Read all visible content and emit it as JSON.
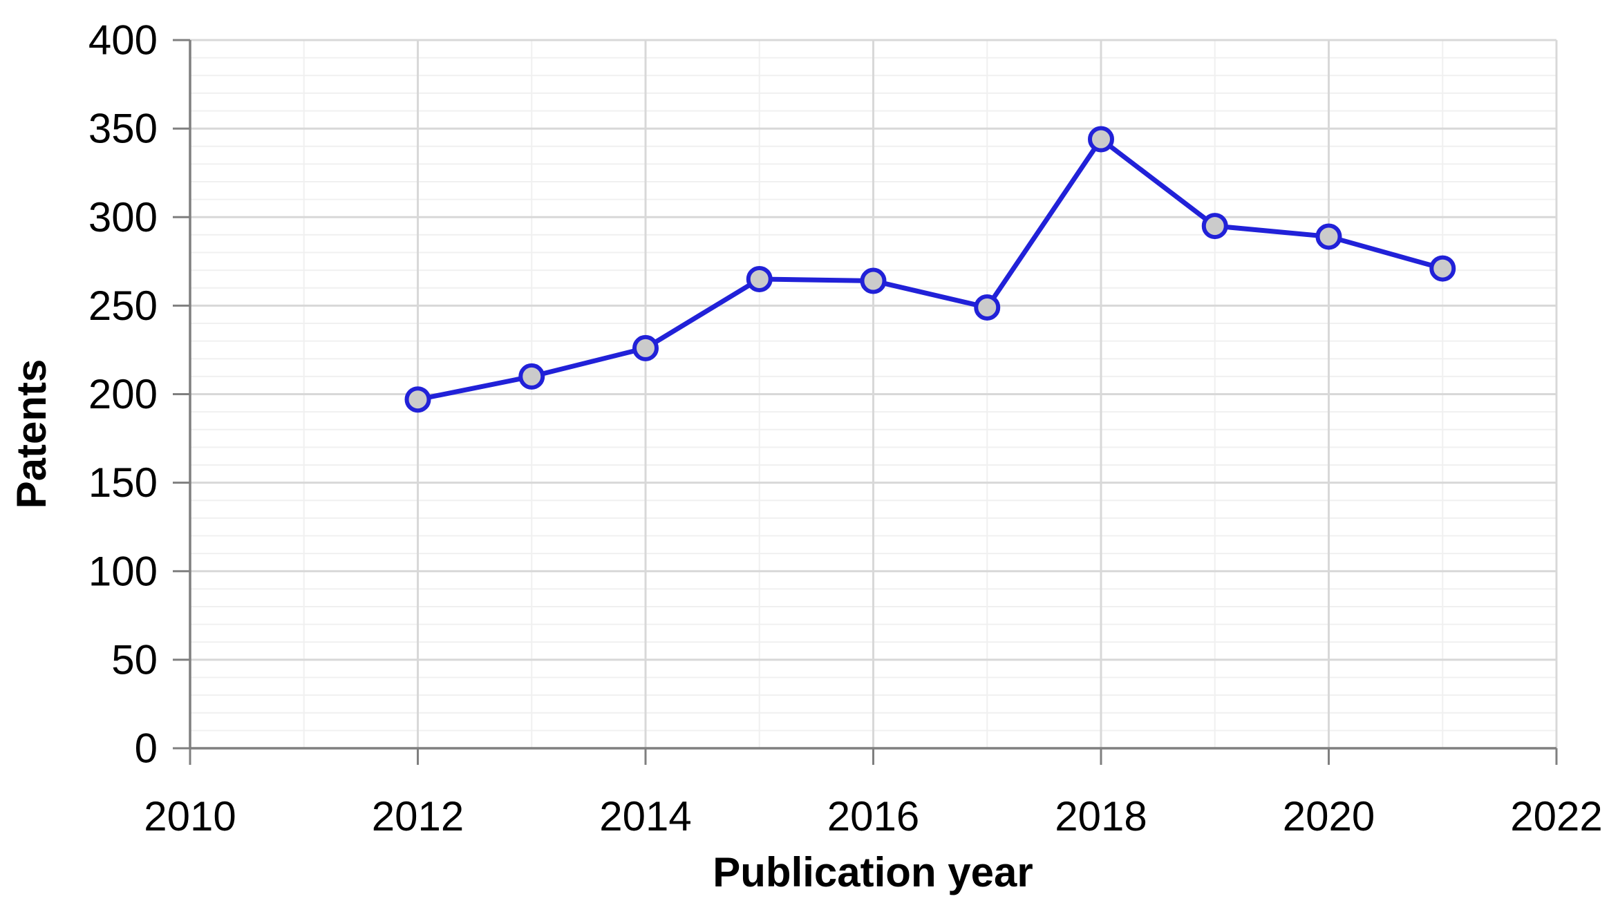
{
  "chart_data": {
    "type": "line",
    "title": "",
    "xlabel": "Publication year",
    "ylabel": "Patents",
    "x": [
      2012,
      2013,
      2014,
      2015,
      2016,
      2017,
      2018,
      2019,
      2020,
      2021
    ],
    "values": [
      197,
      210,
      226,
      265,
      264,
      249,
      344,
      295,
      289,
      271
    ],
    "series_name": "Patents",
    "xlim": [
      2010,
      2022
    ],
    "ylim": [
      0,
      400
    ],
    "x_ticks": [
      2010,
      2012,
      2014,
      2016,
      2018,
      2020,
      2022
    ],
    "y_ticks": [
      0,
      50,
      100,
      150,
      200,
      250,
      300,
      350,
      400
    ],
    "x_minor_step": 1,
    "y_minor_step": 10,
    "grid": true,
    "legend_position": "none",
    "colors": {
      "line": "#2121D8",
      "marker_fill": "#CBCBCB",
      "marker_border": "#2121D8",
      "grid_major": "#D8D8D8",
      "grid_minor": "#F0F0F0",
      "axis_line": "#7F7F7F",
      "text": "#000000"
    }
  }
}
